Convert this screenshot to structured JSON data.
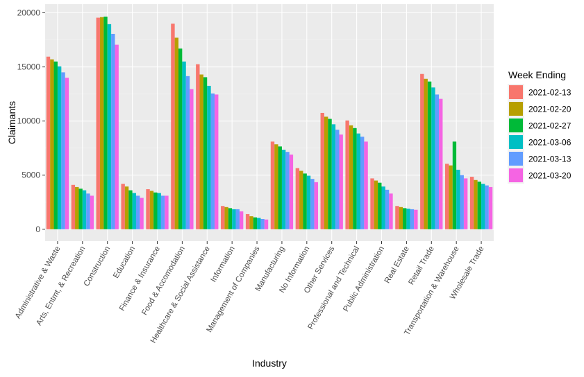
{
  "chart_data": {
    "type": "bar",
    "xlabel": "Industry",
    "ylabel": "Claimants",
    "ylim": [
      -1100,
      20800
    ],
    "y_ticks": [
      0,
      5000,
      10000,
      15000,
      20000
    ],
    "y_tick_labels": [
      "0",
      "5000",
      "10000",
      "15000",
      "20000"
    ],
    "grid": true,
    "legend_position": "right",
    "legend_title": "Week Ending",
    "categories": [
      "Administrative & Waste",
      "Arts, Entmt, & Recreation",
      "Construction",
      "Education",
      "Finance & Insurance",
      "Food & Accomodation",
      "Healthcare & Social Assistance",
      "Information",
      "Management of Companies",
      "Manufacturing",
      "No Information",
      "Other Services",
      "Professional and Technical",
      "Public Administration",
      "Real Estate",
      "Retail Trade",
      "Transportation & Warehouse",
      "Wholesale Trade"
    ],
    "series": [
      {
        "name": "2021-02-13",
        "color": "#F8766D",
        "values": [
          15950,
          4100,
          19550,
          4200,
          3700,
          19000,
          15250,
          2150,
          1400,
          8100,
          5650,
          10750,
          10050,
          4700,
          2150,
          14350,
          6050,
          4850
        ]
      },
      {
        "name": "2021-02-20",
        "color": "#B79F00",
        "values": [
          15700,
          3900,
          19600,
          3950,
          3550,
          17700,
          14300,
          2050,
          1200,
          7850,
          5400,
          10400,
          9600,
          4500,
          2050,
          13900,
          5900,
          4550
        ]
      },
      {
        "name": "2021-02-27",
        "color": "#00BA38",
        "values": [
          15500,
          3750,
          19650,
          3600,
          3400,
          16700,
          14050,
          1950,
          1100,
          7650,
          5150,
          10200,
          9350,
          4300,
          1950,
          13650,
          8100,
          4400
        ]
      },
      {
        "name": "2021-03-06",
        "color": "#00BFC4",
        "values": [
          15050,
          3600,
          18950,
          3350,
          3350,
          15500,
          13250,
          1850,
          1050,
          7350,
          4950,
          9700,
          8850,
          3950,
          1900,
          13100,
          5500,
          4200
        ]
      },
      {
        "name": "2021-03-13",
        "color": "#619CFF",
        "values": [
          14500,
          3300,
          18050,
          3100,
          3100,
          14150,
          12550,
          1850,
          950,
          7150,
          4650,
          9200,
          8550,
          3650,
          1850,
          12450,
          5000,
          4050
        ]
      },
      {
        "name": "2021-03-20",
        "color": "#F564E3",
        "values": [
          14000,
          3100,
          17050,
          2900,
          3100,
          12950,
          12450,
          1650,
          900,
          6900,
          4350,
          8750,
          8100,
          3300,
          1800,
          12050,
          4700,
          3900
        ]
      }
    ]
  },
  "colors": {
    "panel_background": "#EBEBEB",
    "gridline_major": "#FFFFFF",
    "gridline_minor": "#F5F5F5",
    "axis_text": "#4D4D4D",
    "axis_title": "#000000"
  }
}
